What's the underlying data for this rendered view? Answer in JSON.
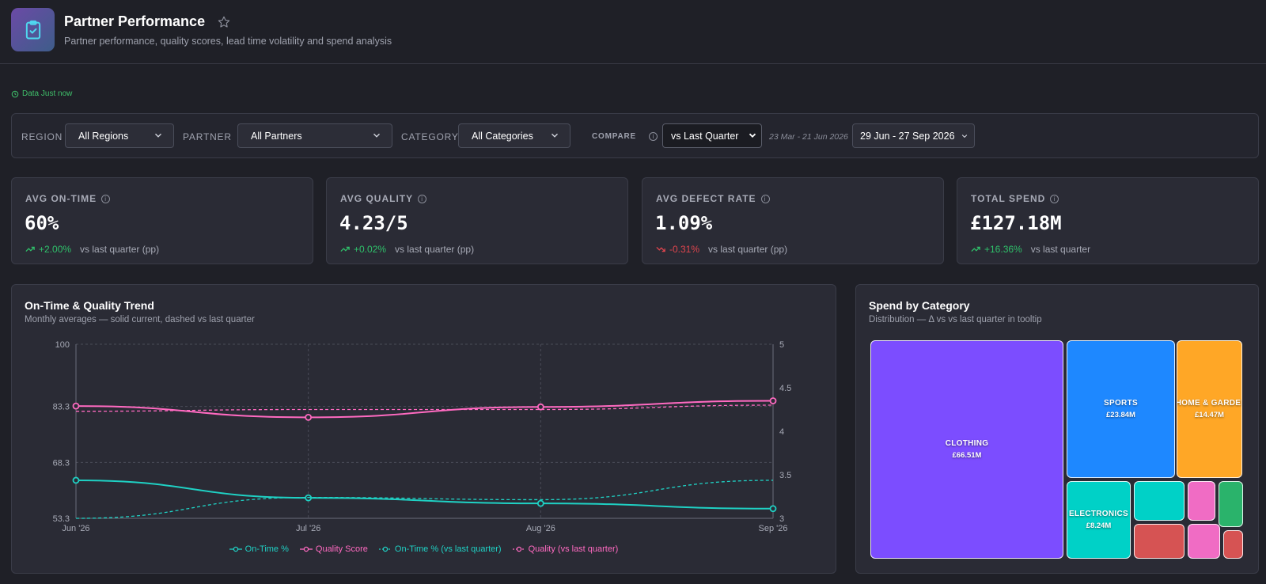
{
  "header": {
    "title": "Partner Performance",
    "subtitle": "Partner performance, quality scores, lead time volatility and spend analysis"
  },
  "freshness": "Data Just now",
  "filters": {
    "region_label": "REGION",
    "region_value": "All Regions",
    "partner_label": "PARTNER",
    "partner_value": "All Partners",
    "category_label": "CATEGORY",
    "category_value": "All Categories",
    "compare_label": "COMPARE",
    "compare_value": "vs Last Quarter",
    "previous_range": "23 Mar - 21 Jun 2026",
    "date_range": "29 Jun - 27 Sep 2026"
  },
  "kpis": [
    {
      "label": "AVG ON-TIME",
      "value": "60%",
      "delta": "+2.00%",
      "direction": "up",
      "vs": "vs last quarter (pp)"
    },
    {
      "label": "AVG QUALITY",
      "value": "4.23/5",
      "delta": "+0.02%",
      "direction": "up",
      "vs": "vs last quarter (pp)"
    },
    {
      "label": "AVG DEFECT RATE",
      "value": "1.09%",
      "delta": "-0.31%",
      "direction": "down",
      "vs": "vs last quarter (pp)"
    },
    {
      "label": "TOTAL SPEND",
      "value": "£127.18M",
      "delta": "+16.36%",
      "direction": "up",
      "vs": "vs last quarter"
    }
  ],
  "trend": {
    "title": "On-Time & Quality Trend",
    "subtitle": "Monthly averages — solid current, dashed vs last quarter"
  },
  "spend": {
    "title": "Spend by Category",
    "subtitle": "Distribution — Δ vs vs last quarter in tooltip",
    "tiles": [
      {
        "name": "CLOTHING",
        "value": "£66.51M",
        "color": "#7c4dff"
      },
      {
        "name": "SPORTS",
        "value": "£23.84M",
        "color": "#1e88ff"
      },
      {
        "name": "HOME & GARDEI",
        "value": "£14.47M",
        "color": "#ffa726"
      },
      {
        "name": "ELECTRONICS",
        "value": "£8.24M",
        "color": "#00d1c7"
      },
      {
        "name": "",
        "value": "",
        "color": "#00d1c7"
      },
      {
        "name": "",
        "value": "",
        "color": "#d65353"
      },
      {
        "name": "",
        "value": "",
        "color": "#f06cc4"
      },
      {
        "name": "",
        "value": "",
        "color": "#2ab36b"
      },
      {
        "name": "",
        "value": "",
        "color": "#f06cc4"
      },
      {
        "name": "",
        "value": "",
        "color": "#d65353"
      }
    ]
  },
  "chart_data": {
    "type": "line",
    "x": [
      "Jun '26",
      "Jul '26",
      "Aug '26",
      "Sep '26"
    ],
    "y_left": {
      "ticks": [
        "100",
        "83.3",
        "68.3",
        "53.3"
      ],
      "range": [
        53.3,
        100
      ]
    },
    "y_right": {
      "ticks": [
        "5",
        "4.5",
        "4",
        "3.5",
        "3"
      ],
      "range": [
        3,
        5
      ]
    },
    "series": [
      {
        "name": "On-Time %",
        "axis": "left",
        "style": "solid",
        "color": "#1fd1c4",
        "values": [
          63.5,
          58.8,
          57.3,
          55.9
        ]
      },
      {
        "name": "Quality Score",
        "axis": "right",
        "style": "solid",
        "color": "#ff6ac1",
        "values": [
          4.29,
          4.16,
          4.28,
          4.35
        ]
      },
      {
        "name": "On-Time % (vs last quarter)",
        "axis": "left",
        "style": "dashed",
        "color": "#1fd1c4",
        "values": [
          53.3,
          58.9,
          58.3,
          63.5
        ]
      },
      {
        "name": "Quality (vs last quarter)",
        "axis": "right",
        "style": "dashed",
        "color": "#ff6ac1",
        "values": [
          4.23,
          4.25,
          4.25,
          4.3
        ]
      }
    ],
    "grid": true,
    "legend": "bottom"
  }
}
